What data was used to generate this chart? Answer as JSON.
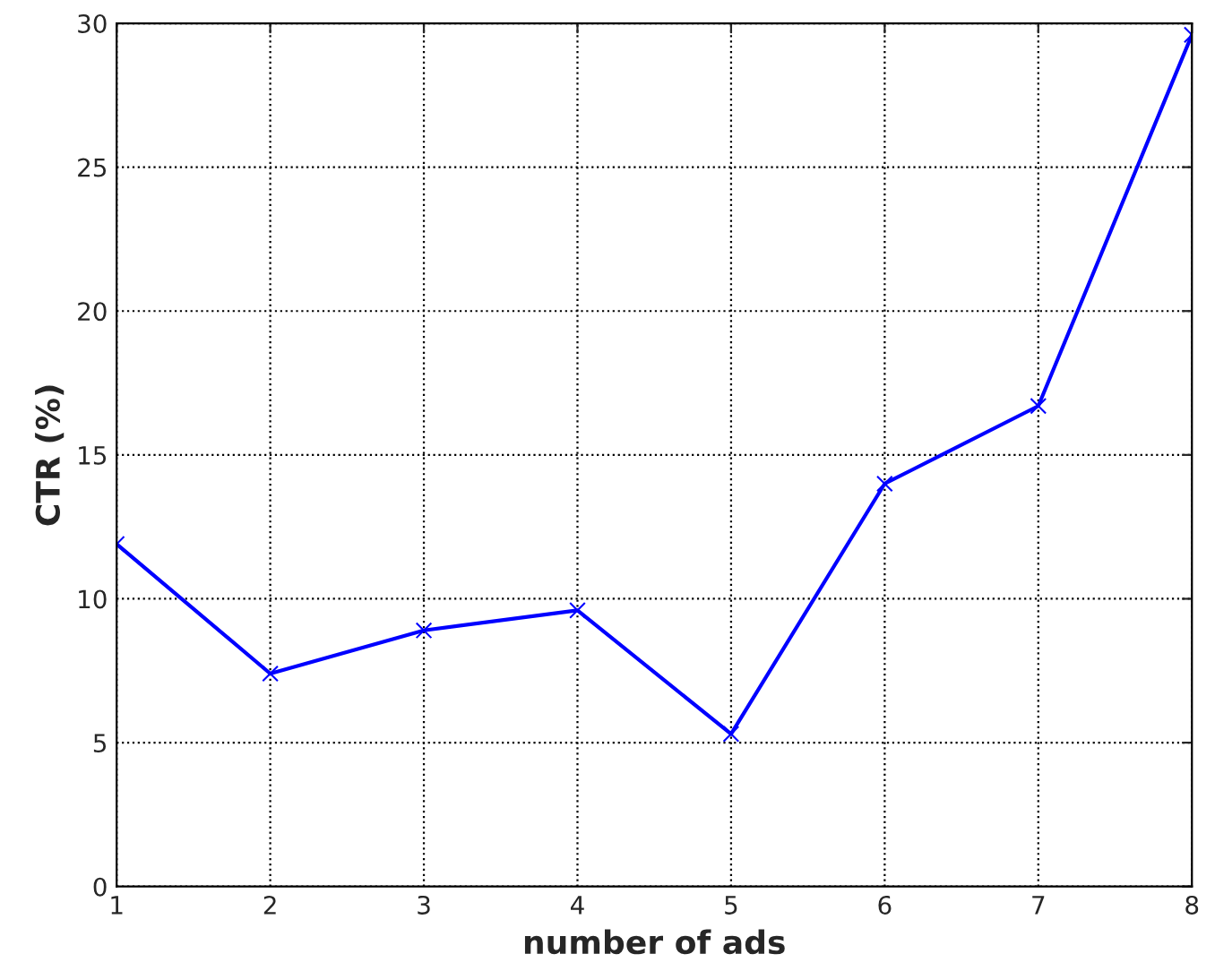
{
  "chart_data": {
    "type": "line",
    "xlabel": "number of ads",
    "ylabel": "CTR (%)",
    "x": [
      1,
      2,
      3,
      4,
      5,
      6,
      7,
      8
    ],
    "series": [
      {
        "color": "#0000ff",
        "values": [
          11.9,
          7.4,
          8.9,
          9.6,
          5.3,
          14.0,
          16.7,
          29.6
        ]
      }
    ],
    "xlim": [
      1,
      8
    ],
    "xticks": [
      1,
      2,
      3,
      4,
      5,
      6,
      7,
      8
    ],
    "ylim": [
      0,
      30
    ],
    "yticks": [
      0,
      5,
      10,
      15,
      20,
      25,
      30
    ],
    "grid": true,
    "marker": "cross",
    "line_style": "solid"
  }
}
